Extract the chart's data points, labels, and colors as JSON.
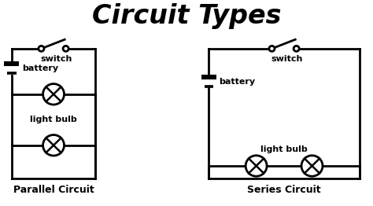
{
  "title": "Circuit Types",
  "title_fontsize": 24,
  "title_fontweight": "bold",
  "title_fontstyle": "italic",
  "background_color": "#ffffff",
  "line_color": "#000000",
  "line_width": 2.0,
  "parallel_label": "Parallel Circuit",
  "series_label": "Series Circuit",
  "label_fontsize": 9,
  "label_fontweight": "bold",
  "component_fontsize": 8,
  "component_fontweight": "bold"
}
